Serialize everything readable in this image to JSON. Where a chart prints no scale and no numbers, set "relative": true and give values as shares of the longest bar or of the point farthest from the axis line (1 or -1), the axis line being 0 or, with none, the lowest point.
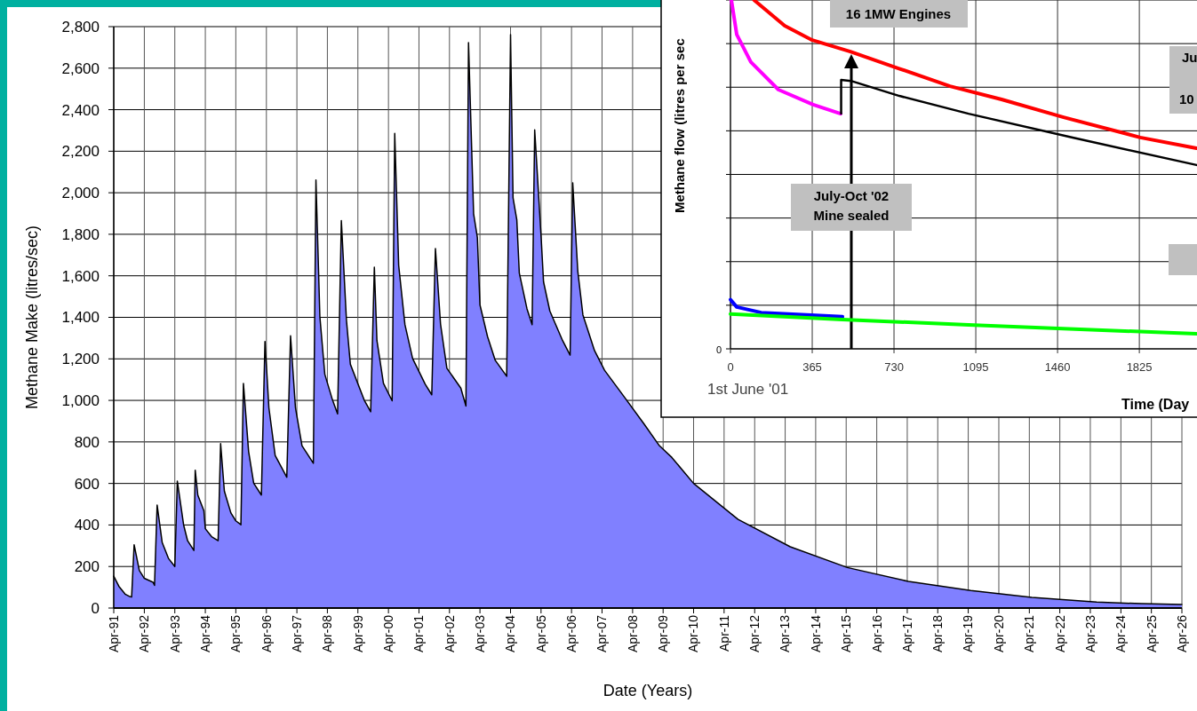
{
  "chart_data": [
    {
      "type": "area",
      "xlabel": "Date (Years)",
      "ylabel": "Methane Make (litres/sec)",
      "x": [
        "1991-04-01",
        "1991-06-01",
        "1991-08-15",
        "1991-10-01",
        "1991-11-01",
        "1991-12-01",
        "1992-02-01",
        "1992-04-01",
        "1992-07-15",
        "1992-08-01",
        "1992-09-01",
        "1992-11-01",
        "1993-01-15",
        "1993-04-01",
        "1993-05-01",
        "1993-07-15",
        "1993-09-01",
        "1993-11-15",
        "1993-12-01",
        "1994-01-01",
        "1994-03-15",
        "1994-04-01",
        "1994-06-15",
        "1994-09-01",
        "1994-10-01",
        "1994-11-15",
        "1995-02-01",
        "1995-04-01",
        "1995-06-01",
        "1995-07-01",
        "1995-09-01",
        "1995-11-01",
        "1996-02-01",
        "1996-03-15",
        "1996-05-01",
        "1996-07-15",
        "1996-12-01",
        "1997-01-15",
        "1997-03-15",
        "1997-06-01",
        "1997-10-15",
        "1997-11-15",
        "1998-01-01",
        "1998-03-01",
        "1998-06-01",
        "1998-08-01",
        "1998-09-15",
        "1998-11-15",
        "1999-01-01",
        "1999-06-15",
        "1999-09-01",
        "1999-10-15",
        "1999-11-15",
        "2000-02-01",
        "2000-05-15",
        "2000-06-15",
        "2000-08-01",
        "2000-10-15",
        "2001-01-15",
        "2001-06-15",
        "2001-09-01",
        "2001-10-15",
        "2001-12-15",
        "2002-03-01",
        "2002-08-15",
        "2002-10-15",
        "2002-11-15",
        "2003-01-15",
        "2003-03-01",
        "2003-04-01",
        "2003-07-01",
        "2003-10-01",
        "2004-02-15",
        "2004-04-01",
        "2004-05-01",
        "2004-06-15",
        "2004-07-15",
        "2004-10-15",
        "2004-12-15",
        "2005-01-15",
        "2005-04-01",
        "2005-05-01",
        "2005-07-15",
        "2005-12-15",
        "2006-03-15",
        "2006-04-15",
        "2006-06-15",
        "2006-08-15",
        "2007-01-01",
        "2007-05-01",
        "2007-12-15",
        "2008-08-15",
        "2009-02-15",
        "2009-07-15",
        "2010-04-01",
        "2011-09-15",
        "2013-06-01",
        "2015-04-15",
        "2017-04-15",
        "2019-05-01",
        "2021-05-01",
        "2023-06-15",
        "2024-12-01",
        "2026-04-01"
      ],
      "series": [
        {
          "color": "#8080ff",
          "values": [
            153,
            105,
            67,
            57,
            53,
            305,
            181,
            143,
            124,
            109,
            496,
            315,
            239,
            200,
            611,
            401,
            324,
            277,
            664,
            544,
            468,
            382,
            344,
            324,
            792,
            563,
            458,
            420,
            401,
            1082,
            754,
            601,
            544,
            1284,
            964,
            735,
            630,
            1311,
            964,
            782,
            697,
            2061,
            1403,
            1126,
            1002,
            935,
            1866,
            1387,
            1174,
            1002,
            945,
            1641,
            1288,
            1082,
            998,
            2286,
            1651,
            1365,
            1202,
            1078,
            1027,
            1731,
            1368,
            1155,
            1059,
            973,
            2723,
            1899,
            1784,
            1460,
            1307,
            1193,
            1116,
            2761,
            1975,
            1870,
            1613,
            1441,
            1365,
            2303,
            1794,
            1571,
            1431,
            1288,
            1218,
            2048,
            1622,
            1412,
            1240,
            1145,
            1021,
            887,
            782,
            725,
            600,
            427,
            295,
            195,
            128,
            84,
            51,
            29,
            21,
            17
          ]
        }
      ],
      "xlim": [
        "1991-04",
        "2026-04"
      ],
      "xticks": [
        {
          "value": "1991-04",
          "label": "Apr-91"
        },
        {
          "value": "1992-04",
          "label": "Apr-92"
        },
        {
          "value": "1993-04",
          "label": "Apr-93"
        },
        {
          "value": "1994-04",
          "label": "Apr-94"
        },
        {
          "value": "1995-04",
          "label": "Apr-95"
        },
        {
          "value": "1996-04",
          "label": "Apr-96"
        },
        {
          "value": "1997-04",
          "label": "Apr-97"
        },
        {
          "value": "1998-04",
          "label": "Apr-98"
        },
        {
          "value": "1999-04",
          "label": "Apr-99"
        },
        {
          "value": "2000-04",
          "label": "Apr-00"
        },
        {
          "value": "2001-04",
          "label": "Apr-01"
        },
        {
          "value": "2002-04",
          "label": "Apr-02"
        },
        {
          "value": "2003-04",
          "label": "Apr-03"
        },
        {
          "value": "2004-04",
          "label": "Apr-04"
        },
        {
          "value": "2005-04",
          "label": "Apr-05"
        },
        {
          "value": "2006-04",
          "label": "Apr-06"
        },
        {
          "value": "2007-04",
          "label": "Apr-07"
        },
        {
          "value": "2008-04",
          "label": "Apr-08"
        },
        {
          "value": "2009-04",
          "label": "Apr-09"
        },
        {
          "value": "2010-04",
          "label": "Apr-10"
        },
        {
          "value": "2011-04",
          "label": "Apr-11"
        },
        {
          "value": "2012-04",
          "label": "Apr-12"
        },
        {
          "value": "2013-04",
          "label": "Apr-13"
        },
        {
          "value": "2014-04",
          "label": "Apr-14"
        },
        {
          "value": "2015-04",
          "label": "Apr-15"
        },
        {
          "value": "2016-04",
          "label": "Apr-16"
        },
        {
          "value": "2017-04",
          "label": "Apr-17"
        },
        {
          "value": "2018-04",
          "label": "Apr-18"
        },
        {
          "value": "2019-04",
          "label": "Apr-19"
        },
        {
          "value": "2020-04",
          "label": "Apr-20"
        },
        {
          "value": "2021-04",
          "label": "Apr-21"
        },
        {
          "value": "2022-04",
          "label": "Apr-22"
        },
        {
          "value": "2023-04",
          "label": "Apr-23"
        },
        {
          "value": "2024-04",
          "label": "Apr-24"
        },
        {
          "value": "2025-04",
          "label": "Apr-25"
        },
        {
          "value": "2026-04",
          "label": "Apr-26"
        }
      ],
      "ylim": [
        0,
        2800
      ],
      "yticks": [
        0,
        200,
        400,
        600,
        800,
        {
          "value": 1000,
          "label": "1,000"
        },
        {
          "value": 1200,
          "label": "1,200"
        },
        {
          "value": 1400,
          "label": "1,400"
        },
        {
          "value": 1600,
          "label": "1,600"
        },
        {
          "value": 1800,
          "label": "1,800"
        },
        {
          "value": 2000,
          "label": "2,000"
        },
        {
          "value": 2200,
          "label": "2,200"
        },
        {
          "value": 2400,
          "label": "2,400"
        },
        {
          "value": 2600,
          "label": "2,600"
        },
        {
          "value": 2800,
          "label": "2,800"
        }
      ],
      "grid": true
    },
    {
      "type": "line",
      "xlabel": "Time (Day",
      "ylabel": "Methane flow (litres per sec",
      "relative": true,
      "annotations": [
        "16 1MW Engines",
        "July-Oct '02\nMine sealed",
        "Ju",
        "10",
        "1st June '01",
        "0"
      ],
      "series": [
        {
          "color": "#ff0000",
          "x": [
            105,
            242,
            365,
            535,
            750,
            980,
            1210,
            1487,
            1829,
            2080
          ],
          "values": [
            1,
            0.926,
            0.885,
            0.852,
            0.804,
            0.753,
            0.715,
            0.664,
            0.606,
            0.575
          ]
        },
        {
          "color": "#ff00ff",
          "x": [
            4,
            28,
            91,
            214,
            369,
            492
          ],
          "values": [
            1,
            0.901,
            0.822,
            0.743,
            0.7,
            0.674
          ]
        },
        {
          "color": "#000000",
          "x": [
            494,
            494,
            538,
            754,
            1063,
            1523,
            2080
          ],
          "values": [
            0.674,
            0.771,
            0.768,
            0.725,
            0.674,
            0.606,
            0.527
          ]
        },
        {
          "color": "#0000ff",
          "x": [
            0,
            28,
            137,
            500
          ],
          "values": [
            0.141,
            0.12,
            0.104,
            0.092
          ]
        },
        {
          "color": "#00ff00",
          "x": [
            0,
            500,
            1063,
            2080
          ],
          "values": [
            0.1,
            0.084,
            0.069,
            0.043
          ]
        }
      ],
      "xlim": [
        0,
        2080
      ],
      "xticks": [
        0,
        365,
        730,
        1095,
        1460,
        1825
      ],
      "grid": true
    }
  ]
}
